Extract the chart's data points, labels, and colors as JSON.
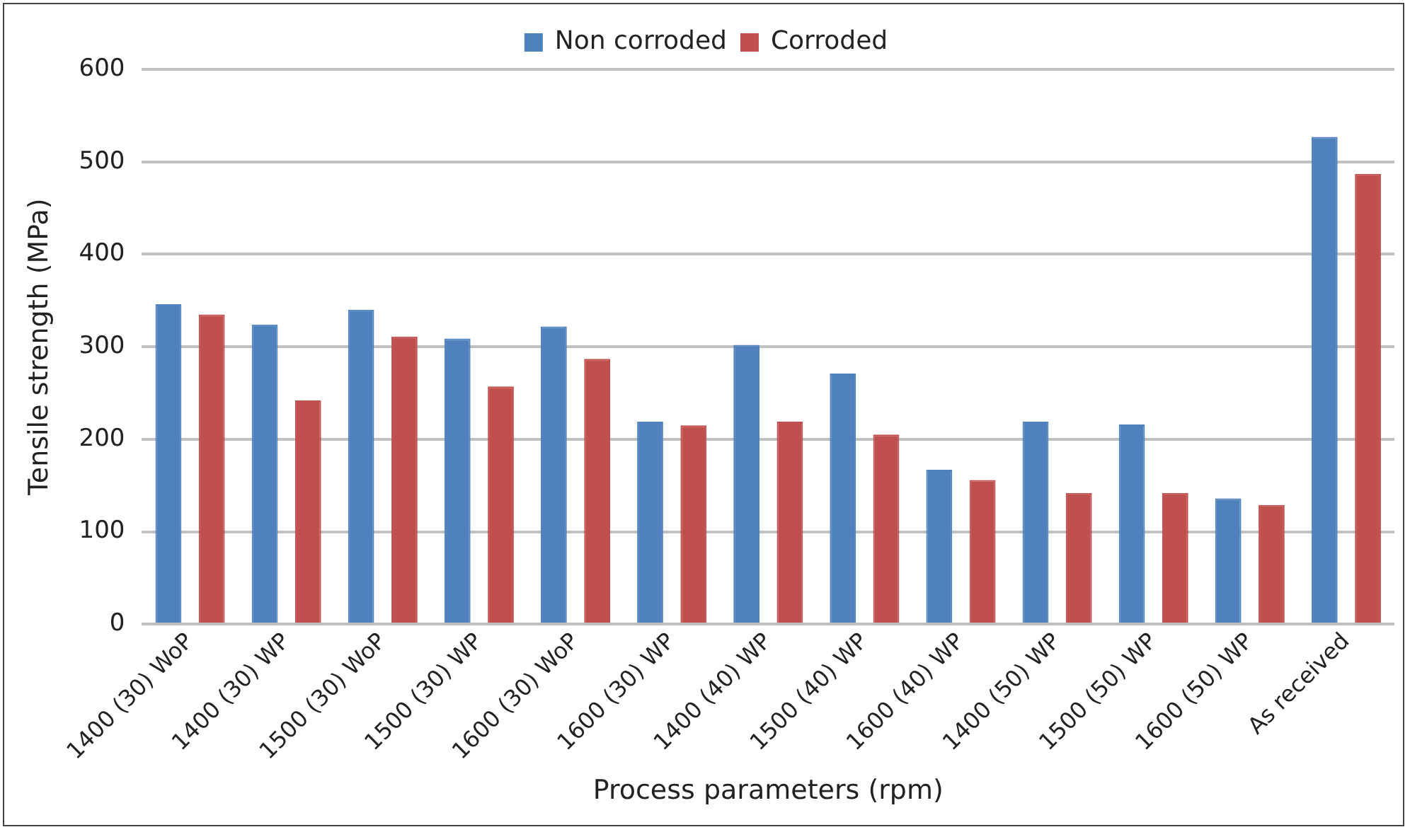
{
  "chart_data": {
    "type": "bar",
    "xlabel": "Process parameters (rpm)",
    "ylabel": "Tensile strength (MPa)",
    "categories": [
      "1400 (30) WoP",
      "1400 (30) WP",
      "1500 (30) WoP",
      "1500 (30) WP",
      "1600 (30) WoP",
      "1600 (30) WP",
      "1400 (40) WP",
      "1500 (40) WP",
      "1600 (40) WP",
      "1400 (50) WP",
      "1500 (50) WP",
      "1600 (50) WP",
      "As received"
    ],
    "series": [
      {
        "name": "Non corroded",
        "color": "#4f81bd",
        "values": [
          346,
          324,
          340,
          309,
          322,
          219,
          302,
          271,
          167,
          219,
          216,
          136,
          527
        ]
      },
      {
        "name": "Corroded",
        "color": "#c0504d",
        "values": [
          335,
          242,
          311,
          257,
          287,
          215,
          219,
          205,
          156,
          142,
          142,
          129,
          487
        ]
      }
    ],
    "ylim": [
      0,
      600
    ],
    "yticks": [
      0,
      100,
      200,
      300,
      400,
      500,
      600
    ],
    "grid": "y",
    "legend": "top"
  }
}
